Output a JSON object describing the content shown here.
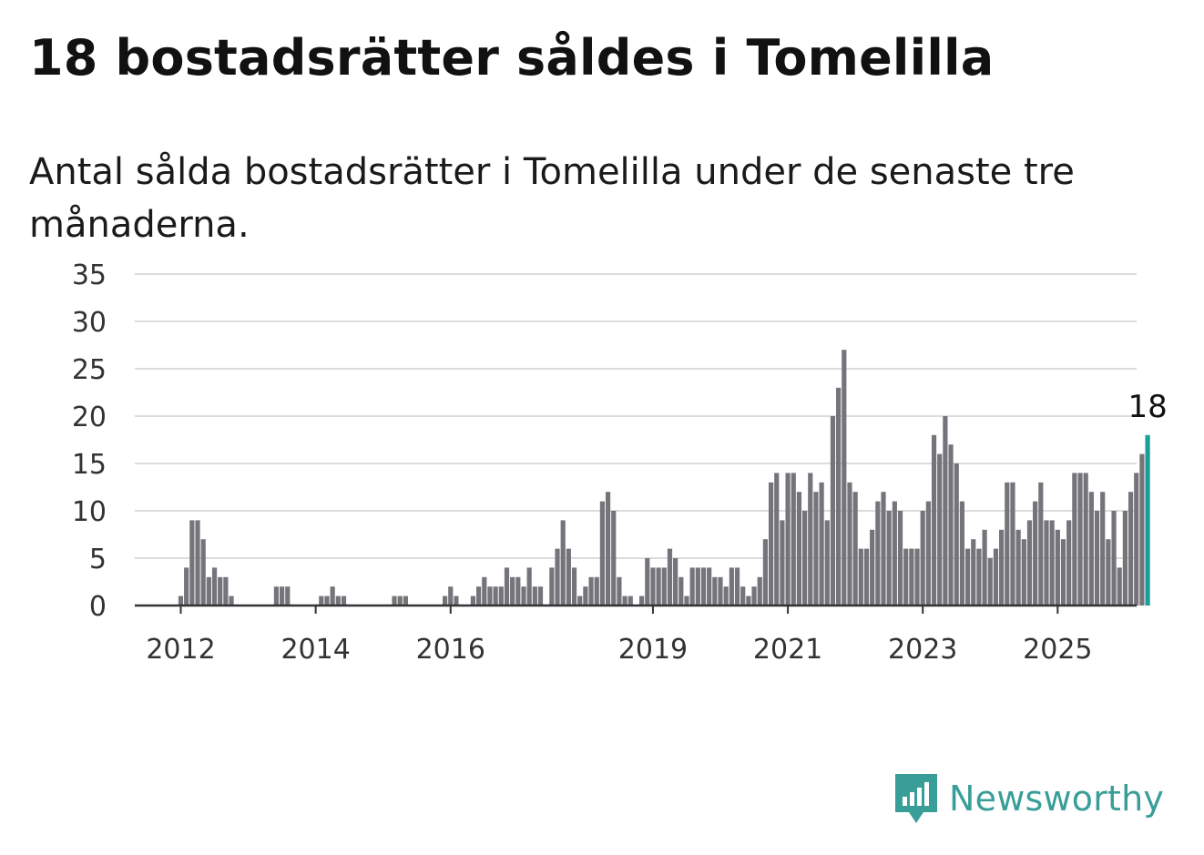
{
  "title": "18 bostadsrätter såldes i Tomelilla",
  "subtitle": "Antal sålda bostadsrätter i Tomelilla under de senaste tre månaderna.",
  "brand": {
    "name": "Newsworthy"
  },
  "colors": {
    "bar": "#75747b",
    "highlight": "#1a9e97",
    "grid": "#dcdcdc",
    "axis": "#333333",
    "brand": "#3a9e98"
  },
  "chart_data": {
    "type": "bar",
    "x_start": "2011-01",
    "x_interval": "month",
    "ylim": [
      0,
      35
    ],
    "yticks": [
      0,
      5,
      10,
      15,
      20,
      25,
      30,
      35
    ],
    "xticks": [
      "2012",
      "2014",
      "2016",
      "2019",
      "2021",
      "2023",
      "2025"
    ],
    "grid": true,
    "annotation": "18",
    "values": [
      0,
      0,
      0,
      0,
      0,
      0,
      0,
      0,
      0,
      0,
      0,
      0,
      1,
      4,
      9,
      9,
      7,
      3,
      4,
      3,
      3,
      1,
      0,
      0,
      0,
      0,
      0,
      0,
      0,
      2,
      2,
      2,
      0,
      0,
      0,
      0,
      0,
      1,
      1,
      2,
      1,
      1,
      0,
      0,
      0,
      0,
      0,
      0,
      0,
      0,
      1,
      1,
      1,
      0,
      0,
      0,
      0,
      0,
      0,
      1,
      2,
      1,
      0,
      0,
      1,
      2,
      3,
      2,
      2,
      2,
      4,
      3,
      3,
      2,
      4,
      2,
      2,
      0,
      4,
      6,
      9,
      6,
      4,
      1,
      2,
      3,
      3,
      11,
      12,
      10,
      3,
      1,
      1,
      0,
      1,
      5,
      4,
      4,
      4,
      6,
      5,
      3,
      1,
      4,
      4,
      4,
      4,
      3,
      3,
      2,
      4,
      4,
      2,
      1,
      2,
      3,
      7,
      13,
      14,
      9,
      14,
      14,
      12,
      10,
      14,
      12,
      13,
      9,
      20,
      23,
      27,
      13,
      12,
      6,
      6,
      8,
      11,
      12,
      10,
      11,
      10,
      6,
      6,
      6,
      10,
      11,
      18,
      16,
      20,
      17,
      15,
      11,
      6,
      7,
      6,
      8,
      5,
      6,
      8,
      13,
      13,
      8,
      7,
      9,
      11,
      13,
      9,
      9,
      8,
      7,
      9,
      14,
      14,
      14,
      12,
      10,
      12,
      7,
      10,
      4,
      10,
      12,
      14,
      16,
      18
    ]
  }
}
